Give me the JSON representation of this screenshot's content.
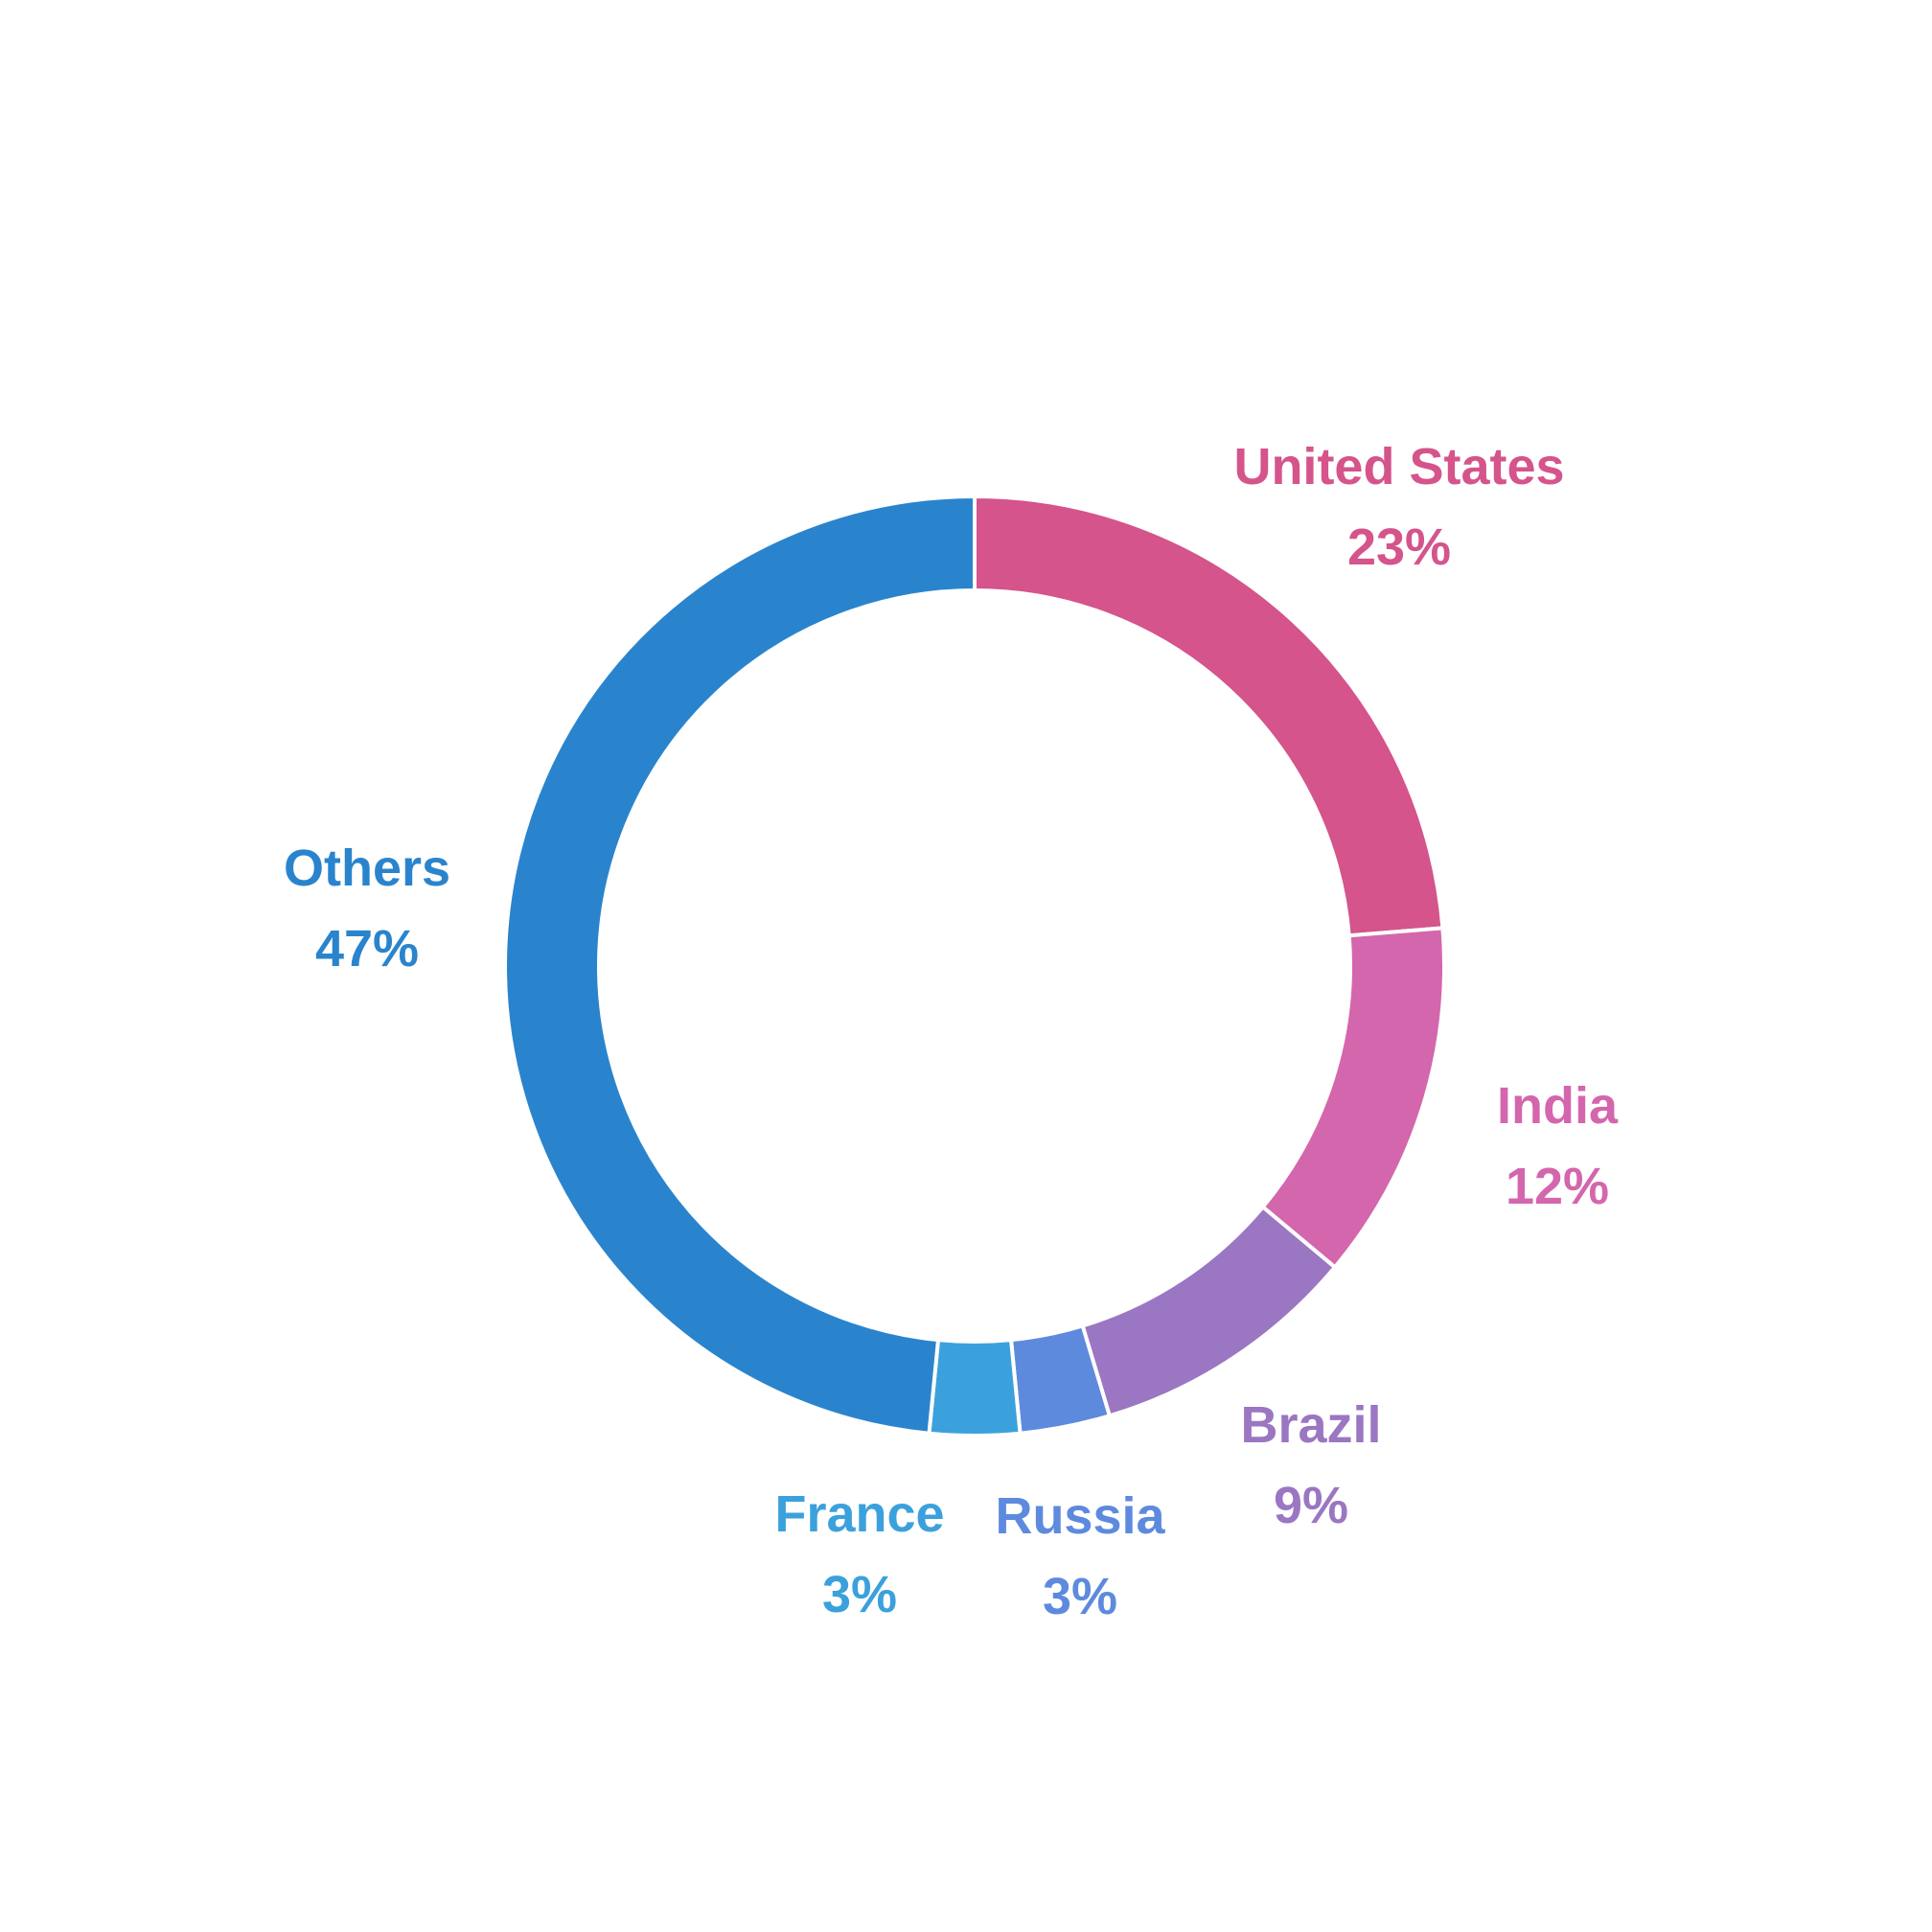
{
  "chart_data": {
    "type": "pie",
    "donut": true,
    "title": "",
    "categories": [
      "United States",
      "India",
      "Brazil",
      "Russia",
      "France",
      "Others"
    ],
    "values": [
      23,
      12,
      9,
      3,
      3,
      47
    ],
    "value_labels": [
      "23%",
      "12%",
      "9%",
      "3%",
      "3%",
      "47%"
    ],
    "colors": [
      "#d4548b",
      "#d466ad",
      "#9b76c2",
      "#5e8ade",
      "#3ba1dc",
      "#2a84cd"
    ],
    "start": "12 o'clock",
    "direction": "clockwise",
    "legend": "none"
  }
}
